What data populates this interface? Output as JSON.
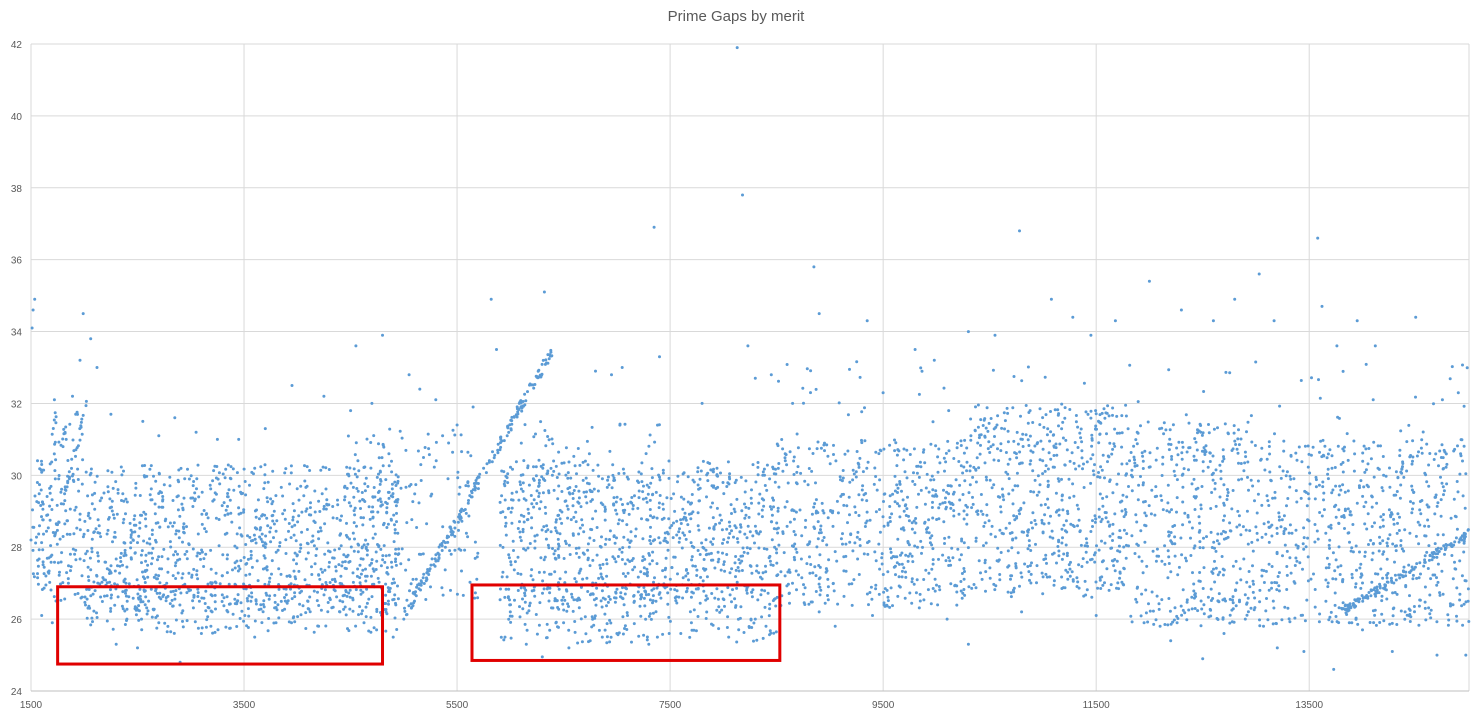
{
  "chart_data": {
    "type": "scatter",
    "title": "Prime Gaps by merit",
    "xlabel": "",
    "ylabel": "",
    "xlim": [
      1500,
      15000
    ],
    "ylim": [
      24,
      42
    ],
    "x_ticks": [
      "1500",
      "3500",
      "5500",
      "7500",
      "9500",
      "11500",
      "13500"
    ],
    "y_ticks": [
      "24",
      "26",
      "28",
      "30",
      "32",
      "34",
      "36",
      "38",
      "40",
      "42"
    ],
    "grid": true,
    "legend": "none",
    "marker_color": "#5B9BD5",
    "series": [
      {
        "points": [
          [
            1500,
            28.2
          ],
          [
            1510,
            34.1
          ],
          [
            1520,
            34.6
          ],
          [
            1535,
            34.9
          ],
          [
            1560,
            29.8
          ],
          [
            1580,
            28.6
          ],
          [
            1600,
            30.3
          ],
          [
            1640,
            27.2
          ],
          [
            1680,
            29.5
          ],
          [
            1720,
            32.1
          ],
          [
            1760,
            29.9
          ],
          [
            1800,
            30.8
          ],
          [
            1830,
            31.0
          ],
          [
            1860,
            30.1
          ],
          [
            1890,
            32.2
          ],
          [
            1920,
            31.7
          ],
          [
            1960,
            33.2
          ],
          [
            1990,
            34.5
          ],
          [
            2060,
            33.8
          ],
          [
            2120,
            33.0
          ],
          [
            2250,
            31.7
          ],
          [
            2550,
            31.5
          ],
          [
            2700,
            31.1
          ],
          [
            2850,
            31.6
          ],
          [
            3050,
            31.2
          ],
          [
            3250,
            31.0
          ],
          [
            3450,
            31.0
          ],
          [
            3700,
            31.3
          ],
          [
            3950,
            32.5
          ],
          [
            4250,
            32.2
          ],
          [
            4500,
            31.8
          ],
          [
            4550,
            33.6
          ],
          [
            4700,
            32.0
          ],
          [
            4800,
            33.9
          ],
          [
            4860,
            30.6
          ],
          [
            5050,
            32.8
          ],
          [
            5150,
            32.4
          ],
          [
            5300,
            32.1
          ],
          [
            5420,
            30.9
          ],
          [
            5500,
            31.4
          ],
          [
            5650,
            31.9
          ],
          [
            5820,
            34.9
          ],
          [
            5870,
            33.5
          ],
          [
            6320,
            35.1
          ],
          [
            6800,
            32.9
          ],
          [
            6950,
            32.8
          ],
          [
            7050,
            33.0
          ],
          [
            7350,
            36.9
          ],
          [
            7400,
            33.3
          ],
          [
            7800,
            32.0
          ],
          [
            8130,
            41.9
          ],
          [
            8180,
            37.8
          ],
          [
            8230,
            33.6
          ],
          [
            8300,
            32.7
          ],
          [
            8450,
            32.8
          ],
          [
            8650,
            32.0
          ],
          [
            8850,
            35.8
          ],
          [
            8900,
            34.5
          ],
          [
            9350,
            34.3
          ],
          [
            9500,
            32.3
          ],
          [
            9800,
            33.5
          ],
          [
            9980,
            33.2
          ],
          [
            10300,
            34.0
          ],
          [
            10550,
            33.9
          ],
          [
            10780,
            36.8
          ],
          [
            11080,
            34.9
          ],
          [
            11280,
            34.4
          ],
          [
            11450,
            33.9
          ],
          [
            11680,
            34.3
          ],
          [
            12000,
            35.4
          ],
          [
            12300,
            34.6
          ],
          [
            12600,
            34.3
          ],
          [
            12800,
            34.9
          ],
          [
            13030,
            35.6
          ],
          [
            13170,
            34.3
          ],
          [
            13580,
            36.6
          ],
          [
            13620,
            34.7
          ],
          [
            13760,
            33.6
          ],
          [
            13950,
            34.3
          ],
          [
            14120,
            33.6
          ],
          [
            14500,
            34.4
          ],
          [
            14750,
            32.1
          ],
          [
            14900,
            32.3
          ],
          [
            2300,
            25.3
          ],
          [
            2500,
            25.2
          ],
          [
            2900,
            24.8
          ],
          [
            3100,
            25.6
          ],
          [
            3600,
            25.5
          ],
          [
            4200,
            25.8
          ],
          [
            4900,
            25.5
          ],
          [
            5950,
            25.5
          ],
          [
            6150,
            25.3
          ],
          [
            6300,
            24.95
          ],
          [
            6550,
            25.2
          ],
          [
            6750,
            25.4
          ],
          [
            7000,
            25.6
          ],
          [
            7300,
            25.3
          ],
          [
            7600,
            25.6
          ],
          [
            8050,
            25.5
          ],
          [
            8400,
            25.8
          ],
          [
            9050,
            25.8
          ],
          [
            10300,
            25.3
          ],
          [
            11950,
            25.9
          ],
          [
            12200,
            25.4
          ],
          [
            12500,
            24.9
          ],
          [
            12700,
            25.6
          ],
          [
            13200,
            25.2
          ],
          [
            13450,
            25.1
          ],
          [
            13730,
            24.6
          ],
          [
            14000,
            25.7
          ],
          [
            14280,
            25.1
          ],
          [
            14700,
            25.0
          ],
          [
            14970,
            25.0
          ],
          [
            1600,
            26.1
          ],
          [
            1700,
            25.9
          ],
          [
            2050,
            26.3
          ],
          [
            2400,
            26.0
          ],
          [
            2700,
            25.9
          ],
          [
            3200,
            26.2
          ],
          [
            3800,
            25.9
          ],
          [
            4400,
            26.2
          ],
          [
            5000,
            26.0
          ],
          [
            6000,
            26.2
          ],
          [
            6500,
            25.9
          ],
          [
            7100,
            26.1
          ],
          [
            7700,
            25.9
          ],
          [
            8300,
            26.0
          ],
          [
            8900,
            26.2
          ],
          [
            9400,
            26.1
          ],
          [
            10100,
            26.0
          ],
          [
            10800,
            26.2
          ],
          [
            11500,
            26.1
          ],
          [
            12100,
            25.8
          ],
          [
            12900,
            26.0
          ],
          [
            13300,
            26.3
          ],
          [
            13900,
            25.9
          ],
          [
            14400,
            26.2
          ],
          [
            14850,
            26.4
          ]
        ],
        "clusters": [
          {
            "x": [
              1500,
              1680
            ],
            "y": [
              26.8,
              30.5
            ],
            "count": 60
          },
          {
            "x": [
              1680,
              2000
            ],
            "y": [
              26.5,
              31.8
            ],
            "count": 110
          },
          {
            "x": [
              2000,
              4950
            ],
            "y": [
              26.2,
              30.3
            ],
            "count": 900
          },
          {
            "x": [
              2000,
              4950
            ],
            "y": [
              25.6,
              27.1
            ],
            "count": 230
          },
          {
            "x": [
              4400,
              5480
            ],
            "y": [
              26.5,
              31.3
            ],
            "count": 140
          },
          {
            "x": [
              5500,
              5700
            ],
            "y": [
              26.5,
              31.5
            ],
            "count": 35
          },
          {
            "x": [
              5900,
              8500
            ],
            "y": [
              26.5,
              30.4
            ],
            "count": 780
          },
          {
            "x": [
              5900,
              8500
            ],
            "y": [
              25.3,
              27.0
            ],
            "count": 230
          },
          {
            "x": [
              6100,
              7400
            ],
            "y": [
              28.5,
              31.5
            ],
            "count": 70
          },
          {
            "x": [
              8500,
              10300
            ],
            "y": [
              26.3,
              31.0
            ],
            "count": 520
          },
          {
            "x": [
              10300,
              11800
            ],
            "y": [
              26.6,
              32.0
            ],
            "count": 560
          },
          {
            "x": [
              11800,
              13000
            ],
            "y": [
              25.8,
              31.5
            ],
            "count": 420
          },
          {
            "x": [
              13000,
              15000
            ],
            "y": [
              25.8,
              31.0
            ],
            "count": 620
          },
          {
            "x": [
              8500,
              15000
            ],
            "y": [
              30.8,
              33.2
            ],
            "count": 70
          }
        ],
        "bands": [
          {
            "from": [
              5000,
              26.1
            ],
            "to": [
              6400,
              33.5
            ],
            "count": 190,
            "spread": 0.18
          },
          {
            "from": [
              1650,
              27.3
            ],
            "to": [
              2020,
              32.0
            ],
            "count": 28,
            "spread": 0.22
          },
          {
            "from": [
              13800,
              26.2
            ],
            "to": [
              15000,
              28.4
            ],
            "count": 130,
            "spread": 0.12
          },
          {
            "from": [
              2100,
              26.8
            ],
            "to": [
              2600,
              28.9
            ],
            "count": 25,
            "spread": 0.25
          },
          {
            "from": [
              7200,
              27.0
            ],
            "to": [
              7800,
              29.6
            ],
            "count": 25,
            "spread": 0.25
          },
          {
            "from": [
              9500,
              27.2
            ],
            "to": [
              10400,
              30.2
            ],
            "count": 35,
            "spread": 0.25
          }
        ]
      }
    ],
    "annotations": [
      {
        "type": "rectangle",
        "x": [
          1750,
          4800
        ],
        "y": [
          24.75,
          26.9
        ],
        "color": "#E00000"
      },
      {
        "type": "rectangle",
        "x": [
          5640,
          8530
        ],
        "y": [
          24.85,
          26.95
        ],
        "color": "#E00000"
      }
    ]
  }
}
